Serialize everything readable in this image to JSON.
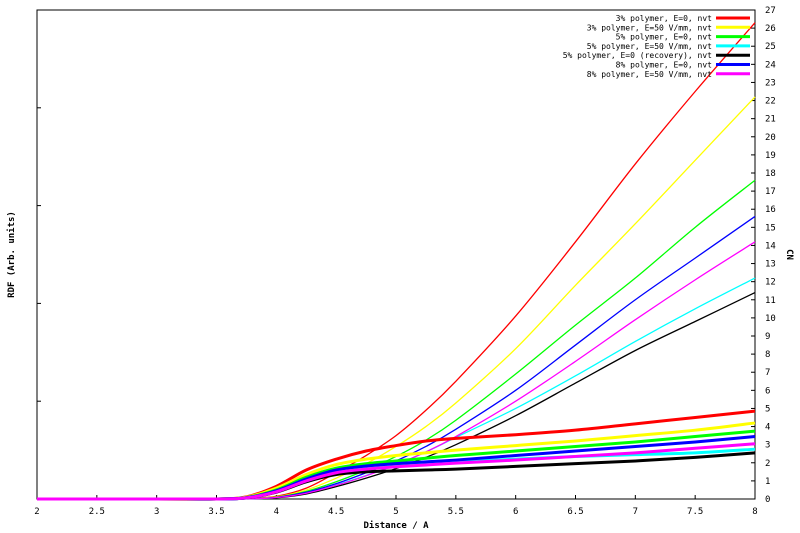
{
  "chart_data": {
    "type": "line",
    "title": "",
    "xlabel": "Distance / A",
    "ylabel_left": "RDF (Arb. units)",
    "ylabel_right": "CN",
    "xlim": [
      2,
      8
    ],
    "ylim_right": [
      0,
      27
    ],
    "x_ticks": [
      "2",
      "2.5",
      "3",
      "3.5",
      "4",
      "4.5",
      "5",
      "5.5",
      "6",
      "6.5",
      "7",
      "7.5",
      "8"
    ],
    "y_right_ticks": [
      "0",
      "1",
      "2",
      "3",
      "4",
      "5",
      "6",
      "7",
      "8",
      "9",
      "10",
      "11",
      "12",
      "13",
      "14",
      "15",
      "16",
      "17",
      "18",
      "19",
      "20",
      "21",
      "22",
      "23",
      "24",
      "25",
      "26",
      "27"
    ],
    "grid": false,
    "legend_position": "top-right",
    "x": [
      2.0,
      3.0,
      3.5,
      3.75,
      4.0,
      4.25,
      4.5,
      4.75,
      5.0,
      5.25,
      5.5,
      6.0,
      6.5,
      7.0,
      7.5,
      8.0
    ],
    "series": [
      {
        "name": "3% polymer, E=0, nvt",
        "color": "#ff0000",
        "rdf": [
          0,
          0,
          0,
          0.12,
          0.7,
          1.6,
          2.2,
          2.65,
          2.95,
          3.2,
          3.35,
          3.55,
          3.8,
          4.15,
          4.5,
          4.85
        ],
        "cn": [
          0,
          0,
          0,
          0.02,
          0.15,
          0.6,
          1.45,
          2.4,
          3.5,
          4.9,
          6.5,
          10.1,
          14.2,
          18.5,
          22.5,
          26.3
        ]
      },
      {
        "name": "3% polymer, E=50 V/mm, nvt",
        "color": "#ffff00",
        "rdf": [
          0,
          0,
          0,
          0.1,
          0.6,
          1.35,
          1.9,
          2.2,
          2.4,
          2.55,
          2.7,
          2.95,
          3.2,
          3.5,
          3.8,
          4.2
        ],
        "cn": [
          0,
          0,
          0,
          0.02,
          0.12,
          0.5,
          1.15,
          1.95,
          2.9,
          4.0,
          5.3,
          8.3,
          11.8,
          15.2,
          18.7,
          22.2
        ]
      },
      {
        "name": "5% polymer, E=0, nvt",
        "color": "#00ff00",
        "rdf": [
          0,
          0,
          0,
          0.08,
          0.5,
          1.2,
          1.7,
          1.95,
          2.1,
          2.25,
          2.4,
          2.65,
          2.9,
          3.15,
          3.45,
          3.75
        ],
        "cn": [
          0,
          0,
          0,
          0.01,
          0.1,
          0.42,
          0.95,
          1.6,
          2.35,
          3.25,
          4.35,
          6.9,
          9.6,
          12.2,
          15.0,
          17.6
        ]
      },
      {
        "name": "5% polymer, E=50 V/mm, nvt",
        "color": "#00ffff",
        "rdf": [
          0,
          0,
          0,
          0.07,
          0.42,
          1.05,
          1.5,
          1.7,
          1.85,
          1.95,
          2.05,
          2.2,
          2.35,
          2.45,
          2.55,
          2.75
        ],
        "cn": [
          0,
          0,
          0,
          0.01,
          0.08,
          0.33,
          0.78,
          1.3,
          1.9,
          2.6,
          3.4,
          5.0,
          6.8,
          8.7,
          10.5,
          12.2
        ]
      },
      {
        "name": "5% polymer, E=0 (recovery), nvt",
        "color": "#000000",
        "rdf": [
          0,
          0,
          0,
          0.06,
          0.38,
          0.95,
          1.35,
          1.5,
          1.55,
          1.6,
          1.65,
          1.8,
          1.95,
          2.1,
          2.3,
          2.55
        ],
        "cn": [
          0,
          0,
          0,
          0.01,
          0.07,
          0.28,
          0.68,
          1.15,
          1.68,
          2.3,
          3.0,
          4.6,
          6.4,
          8.2,
          9.8,
          11.4
        ]
      },
      {
        "name": "8% polymer, E=0, nvt",
        "color": "#0000ff",
        "rdf": [
          0,
          0,
          0,
          0.07,
          0.45,
          1.1,
          1.6,
          1.82,
          1.95,
          2.05,
          2.15,
          2.4,
          2.65,
          2.9,
          3.15,
          3.45
        ],
        "cn": [
          0,
          0,
          0,
          0.01,
          0.09,
          0.37,
          0.85,
          1.45,
          2.1,
          2.9,
          3.85,
          6.0,
          8.5,
          11.0,
          13.3,
          15.6
        ]
      },
      {
        "name": "8% polymer, E=50 V/mm, nvt",
        "color": "#ff00ff",
        "rdf": [
          0,
          0,
          0,
          0.06,
          0.4,
          1.0,
          1.45,
          1.65,
          1.78,
          1.88,
          1.98,
          2.15,
          2.35,
          2.55,
          2.8,
          3.05
        ],
        "cn": [
          0,
          0,
          0,
          0.01,
          0.08,
          0.32,
          0.75,
          1.28,
          1.9,
          2.6,
          3.45,
          5.4,
          7.6,
          9.9,
          12.1,
          14.2
        ]
      }
    ]
  }
}
